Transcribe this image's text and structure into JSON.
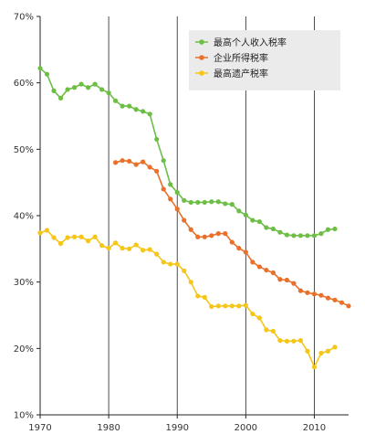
{
  "chart_data": {
    "type": "line",
    "title": "",
    "xlabel": "",
    "ylabel": "",
    "xlim": [
      1970,
      2015
    ],
    "ylim": [
      10,
      70
    ],
    "x_ticks": [
      {
        "value": 1970,
        "label": "1970"
      },
      {
        "value": 1980,
        "label": "1980"
      },
      {
        "value": 1990,
        "label": "1990"
      },
      {
        "value": 2000,
        "label": "2000"
      },
      {
        "value": 2010,
        "label": "2010"
      }
    ],
    "y_ticks": [
      {
        "value": 10,
        "label": "10%"
      },
      {
        "value": 20,
        "label": "20%"
      },
      {
        "value": 30,
        "label": "30%"
      },
      {
        "value": 40,
        "label": "40%"
      },
      {
        "value": 50,
        "label": "50%"
      },
      {
        "value": 60,
        "label": "60%"
      },
      {
        "value": 70,
        "label": "70%"
      }
    ],
    "grid": "vertical lines at each x tick",
    "legend_position": "top-right",
    "series": [
      {
        "name": "最高个人收入税率",
        "color": "#6cbe45",
        "x": [
          1970,
          1971,
          1972,
          1973,
          1974,
          1975,
          1976,
          1977,
          1978,
          1979,
          1980,
          1981,
          1982,
          1983,
          1984,
          1985,
          1986,
          1987,
          1988,
          1989,
          1990,
          1991,
          1992,
          1993,
          1994,
          1995,
          1996,
          1997,
          1998,
          1999,
          2000,
          2001,
          2002,
          2003,
          2004,
          2005,
          2006,
          2007,
          2008,
          2009,
          2010,
          2011,
          2012,
          2013
        ],
        "y": [
          62.2,
          61.3,
          58.8,
          57.7,
          59.0,
          59.3,
          59.8,
          59.3,
          59.8,
          59.0,
          58.5,
          57.3,
          56.5,
          56.5,
          56.0,
          55.7,
          55.3,
          51.5,
          48.3,
          44.7,
          43.5,
          42.3,
          42.0,
          42.0,
          42.0,
          42.1,
          42.1,
          41.8,
          41.7,
          40.7,
          40.1,
          39.3,
          39.1,
          38.2,
          38.0,
          37.5,
          37.1,
          37.0,
          37.0,
          37.0,
          37.0,
          37.3,
          37.9,
          38.0
        ]
      },
      {
        "name": "企业所得税率",
        "color": "#e8702a",
        "x": [
          1981,
          1982,
          1983,
          1984,
          1985,
          1986,
          1987,
          1988,
          1989,
          1990,
          1991,
          1992,
          1993,
          1994,
          1995,
          1996,
          1997,
          1998,
          1999,
          2000,
          2001,
          2002,
          2003,
          2004,
          2005,
          2006,
          2007,
          2008,
          2009,
          2010,
          2011,
          2012,
          2013,
          2014,
          2015
        ],
        "y": [
          48.0,
          48.3,
          48.2,
          47.7,
          48.1,
          47.3,
          46.7,
          44.0,
          42.5,
          41.0,
          39.3,
          37.9,
          36.8,
          36.8,
          37.0,
          37.3,
          37.3,
          36.0,
          35.1,
          34.5,
          33.0,
          32.3,
          31.8,
          31.4,
          30.4,
          30.3,
          29.8,
          28.7,
          28.4,
          28.2,
          28.0,
          27.6,
          27.3,
          26.9,
          26.4
        ]
      },
      {
        "name": "最高遗产税率",
        "color": "#f5c518",
        "x": [
          1970,
          1971,
          1972,
          1973,
          1974,
          1975,
          1976,
          1977,
          1978,
          1979,
          1980,
          1981,
          1982,
          1983,
          1984,
          1985,
          1986,
          1987,
          1988,
          1989,
          1990,
          1991,
          1992,
          1993,
          1994,
          1995,
          1996,
          1997,
          1998,
          1999,
          2000,
          2001,
          2002,
          2003,
          2004,
          2005,
          2006,
          2007,
          2008,
          2009,
          2010,
          2011,
          2012,
          2013
        ],
        "y": [
          37.4,
          37.8,
          36.7,
          35.8,
          36.7,
          36.8,
          36.8,
          36.2,
          36.8,
          35.5,
          35.1,
          35.9,
          35.1,
          35.0,
          35.6,
          34.8,
          34.9,
          34.2,
          33.0,
          32.7,
          32.7,
          31.7,
          30.0,
          27.9,
          27.7,
          26.3,
          26.4,
          26.4,
          26.4,
          26.4,
          26.5,
          25.2,
          24.6,
          22.8,
          22.6,
          21.2,
          21.1,
          21.1,
          21.2,
          19.6,
          17.2,
          19.3,
          19.6,
          20.2
        ]
      }
    ]
  }
}
